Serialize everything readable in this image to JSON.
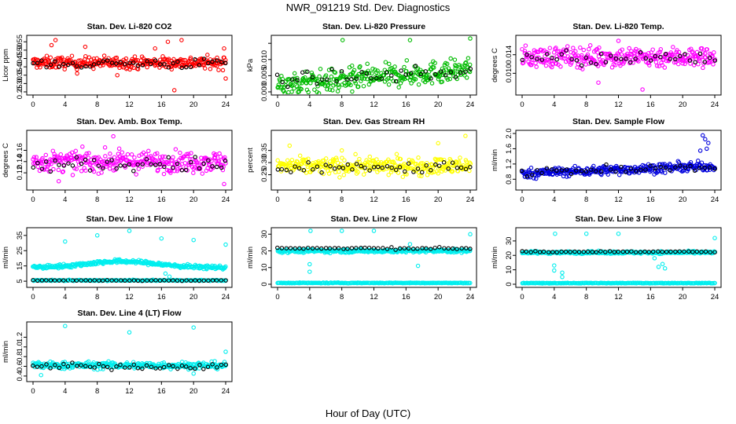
{
  "figure": {
    "title": "NWR_091219  Std. Dev. Diagnostics",
    "xlabel": "Hour of Day (UTC)"
  },
  "chart_data": [
    {
      "type": "scatter",
      "title": "Stan. Dev. Li-820 CO2",
      "ylabel": "Licor ppm",
      "xlim": [
        0,
        24
      ],
      "xticks": [
        0,
        4,
        8,
        12,
        16,
        20,
        24
      ],
      "ylim": [
        0.25,
        0.57
      ],
      "yticks": [
        0.25,
        0.3,
        0.35,
        0.4,
        0.45,
        0.5,
        0.55
      ],
      "ytick_labels": [
        "0.25",
        "0.30",
        "0.35",
        "0.40",
        "0.45",
        "0.50",
        "0.55"
      ],
      "series": [
        {
          "color": "#ff0000",
          "mean": 0.425,
          "spread": 0.035,
          "n": 320
        },
        {
          "color": "#000000",
          "mean": 0.42,
          "spread": 0.03,
          "n": 45
        }
      ],
      "outliers": [
        {
          "x": 2.3,
          "y": 0.53
        },
        {
          "x": 2.8,
          "y": 0.56
        },
        {
          "x": 6.5,
          "y": 0.52
        },
        {
          "x": 15.2,
          "y": 0.51
        },
        {
          "x": 16.8,
          "y": 0.55
        },
        {
          "x": 18.5,
          "y": 0.56
        },
        {
          "x": 10.5,
          "y": 0.35
        },
        {
          "x": 5.5,
          "y": 0.36
        },
        {
          "x": 17.6,
          "y": 0.26
        },
        {
          "x": 23.8,
          "y": 0.51
        },
        {
          "x": 24,
          "y": 0.33
        }
      ]
    },
    {
      "type": "scatter",
      "title": "Stan. Dev. Li-820 Pressure",
      "ylabel": "kPa",
      "xlim": [
        0,
        24
      ],
      "xticks": [
        0,
        4,
        8,
        12,
        16,
        20,
        24
      ],
      "ylim": [
        0,
        0.0165
      ],
      "yticks": [
        0,
        0.005,
        0.01,
        0.015
      ],
      "ytick_labels": [
        "0.000",
        "0.005",
        "0.010",
        ""
      ],
      "series": [
        {
          "color": "#00bb00",
          "mean": 0.0045,
          "spread": 0.0035,
          "n": 320,
          "trend": 0.0002
        },
        {
          "color": "#000000",
          "mean": 0.005,
          "spread": 0.002,
          "n": 40,
          "trend": 0.0001
        }
      ],
      "outliers": [
        {
          "x": 8.1,
          "y": 0.016
        },
        {
          "x": 16.5,
          "y": 0.016
        },
        {
          "x": 24,
          "y": 0.0165
        },
        {
          "x": 7.5,
          "y": 0.0002
        },
        {
          "x": 9.3,
          "y": 0.0001
        }
      ]
    },
    {
      "type": "scatter",
      "title": "Stan. Dev. Li-820 Temp.",
      "ylabel": "degrees C",
      "xlim": [
        0,
        24
      ],
      "xticks": [
        0,
        4,
        8,
        12,
        16,
        20,
        24
      ],
      "ylim": [
        0.006,
        0.0175
      ],
      "yticks": [
        0.01,
        0.014
      ],
      "ytick_labels": [
        "0.010",
        "0.014"
      ],
      "series": [
        {
          "color": "#ff00ff",
          "mean": 0.0135,
          "spread": 0.0022,
          "n": 320
        },
        {
          "color": "#000000",
          "mean": 0.0132,
          "spread": 0.0015,
          "n": 40
        }
      ],
      "outliers": [
        {
          "x": 12,
          "y": 0.017
        },
        {
          "x": 9.5,
          "y": 0.008
        },
        {
          "x": 15,
          "y": 0.0065
        }
      ]
    },
    {
      "type": "scatter",
      "title": "Stan. Dev. Amb. Box Temp.",
      "ylabel": "degrees C",
      "xlim": [
        0,
        24
      ],
      "xticks": [
        0,
        4,
        8,
        12,
        16,
        20,
        24
      ],
      "ylim": [
        0.095,
        0.19
      ],
      "yticks": [
        0.12,
        0.14,
        0.16
      ],
      "ytick_labels": [
        "0.12",
        "0.14",
        "0.16"
      ],
      "series": [
        {
          "color": "#ff00ff",
          "mean": 0.14,
          "spread": 0.018,
          "n": 320
        },
        {
          "color": "#000000",
          "mean": 0.135,
          "spread": 0.013,
          "n": 45
        }
      ],
      "outliers": [
        {
          "x": 10,
          "y": 0.185
        },
        {
          "x": 3.2,
          "y": 0.105
        },
        {
          "x": 23.8,
          "y": 0.1
        }
      ]
    },
    {
      "type": "scatter",
      "title": "Stan. Dev. Gas Stream RH",
      "ylabel": "percent",
      "xlim": [
        0,
        24
      ],
      "xticks": [
        0,
        4,
        8,
        12,
        16,
        20,
        24
      ],
      "ylim": [
        0.2,
        0.42
      ],
      "yticks": [
        0.25,
        0.3,
        0.35
      ],
      "ytick_labels": [
        "0.25",
        "0.30",
        "0.35"
      ],
      "series": [
        {
          "color": "#ffff00",
          "mean": 0.285,
          "spread": 0.035,
          "n": 320
        },
        {
          "color": "#000000",
          "mean": 0.28,
          "spread": 0.025,
          "n": 45
        }
      ],
      "outliers": [
        {
          "x": 1.5,
          "y": 0.37
        },
        {
          "x": 23.4,
          "y": 0.41
        },
        {
          "x": 20,
          "y": 0.38
        },
        {
          "x": 8,
          "y": 0.35
        }
      ]
    },
    {
      "type": "scatter",
      "title": "Stan. Dev. Sample Flow",
      "ylabel": "ml/min",
      "xlim": [
        0,
        24
      ],
      "xticks": [
        0,
        4,
        8,
        12,
        16,
        20,
        24
      ],
      "ylim": [
        0.6,
        2.0
      ],
      "yticks": [
        0.8,
        1.2,
        1.6,
        2.0
      ],
      "ytick_labels": [
        "0.8",
        "1.2",
        "1.6",
        "2.0"
      ],
      "series": [
        {
          "color": "#0000dd",
          "mean": 1.05,
          "spread": 0.12,
          "n": 320,
          "trend": 0.008
        },
        {
          "color": "#000000",
          "mean": 1.05,
          "spread": 0.1,
          "n": 40,
          "trend": 0.006
        }
      ],
      "outliers": [
        {
          "x": 22.5,
          "y": 1.95
        },
        {
          "x": 22.8,
          "y": 1.85
        },
        {
          "x": 23.2,
          "y": 1.75
        },
        {
          "x": 23,
          "y": 1.6
        },
        {
          "x": 22.2,
          "y": 1.55
        }
      ]
    },
    {
      "type": "scatter",
      "title": "Stan. Dev. Line 1 Flow",
      "ylabel": "ml/min",
      "xlim": [
        0,
        24
      ],
      "xticks": [
        0,
        4,
        8,
        12,
        16,
        20,
        24
      ],
      "ylim": [
        3,
        38
      ],
      "yticks": [
        5,
        15,
        25,
        35
      ],
      "ytick_labels": [
        "5",
        "15",
        "25",
        "35"
      ],
      "series": [
        {
          "color": "#00eeee",
          "mean": 14,
          "spread": 1.2,
          "n": 320,
          "bump": 4
        },
        {
          "color": "#00eeee",
          "mean": 5.5,
          "spread": 0.3,
          "n": 200
        },
        {
          "color": "#000000",
          "mean": 5.5,
          "spread": 0.2,
          "n": 45
        }
      ],
      "outliers": [
        {
          "x": 4,
          "y": 31
        },
        {
          "x": 8,
          "y": 35
        },
        {
          "x": 12,
          "y": 38
        },
        {
          "x": 16,
          "y": 33
        },
        {
          "x": 20,
          "y": 32
        },
        {
          "x": 24,
          "y": 29
        },
        {
          "x": 4.5,
          "y": 6
        },
        {
          "x": 16.5,
          "y": 10
        },
        {
          "x": 17,
          "y": 8
        }
      ]
    },
    {
      "type": "scatter",
      "title": "Stan. Dev. Line 2 Flow",
      "ylabel": "ml/min",
      "xlim": [
        0,
        24
      ],
      "xticks": [
        0,
        4,
        8,
        12,
        16,
        20,
        24
      ],
      "ylim": [
        0,
        32
      ],
      "yticks": [
        0,
        10,
        20,
        30
      ],
      "ytick_labels": [
        "0",
        "10",
        "20",
        "30"
      ],
      "series": [
        {
          "color": "#00eeee",
          "mean": 20,
          "spread": 1.0,
          "n": 320
        },
        {
          "color": "#00eeee",
          "mean": 0.8,
          "spread": 0.2,
          "n": 200
        },
        {
          "color": "#000000",
          "mean": 21.5,
          "spread": 0.6,
          "n": 45
        }
      ],
      "outliers": [
        {
          "x": 4,
          "y": 12
        },
        {
          "x": 4,
          "y": 7.5
        },
        {
          "x": 4.1,
          "y": 32
        },
        {
          "x": 8,
          "y": 32
        },
        {
          "x": 12,
          "y": 32
        },
        {
          "x": 16.5,
          "y": 24
        },
        {
          "x": 17.5,
          "y": 11
        },
        {
          "x": 24,
          "y": 30
        }
      ]
    },
    {
      "type": "scatter",
      "title": "Stan. Dev. Line 3 Flow",
      "ylabel": "ml/min",
      "xlim": [
        0,
        24
      ],
      "xticks": [
        0,
        4,
        8,
        12,
        16,
        20,
        24
      ],
      "ylim": [
        0,
        37
      ],
      "yticks": [
        0,
        10,
        20,
        30
      ],
      "ytick_labels": [
        "0",
        "10",
        "20",
        "30"
      ],
      "series": [
        {
          "color": "#00eeee",
          "mean": 22,
          "spread": 0.8,
          "n": 320
        },
        {
          "color": "#00eeee",
          "mean": 0.8,
          "spread": 0.2,
          "n": 200
        },
        {
          "color": "#000000",
          "mean": 22.5,
          "spread": 0.5,
          "n": 45
        }
      ],
      "outliers": [
        {
          "x": 4,
          "y": 13
        },
        {
          "x": 4,
          "y": 9.5
        },
        {
          "x": 4.1,
          "y": 35
        },
        {
          "x": 5,
          "y": 5
        },
        {
          "x": 5,
          "y": 8
        },
        {
          "x": 8,
          "y": 35
        },
        {
          "x": 12,
          "y": 35
        },
        {
          "x": 16.5,
          "y": 18
        },
        {
          "x": 17,
          "y": 12
        },
        {
          "x": 17.5,
          "y": 14
        },
        {
          "x": 17.8,
          "y": 11
        },
        {
          "x": 24,
          "y": 32
        }
      ]
    },
    {
      "type": "scatter",
      "title": "Stan. Dev. Line 4 (LT) Flow",
      "ylabel": "ml/min",
      "xlim": [
        0,
        24
      ],
      "xticks": [
        0,
        4,
        8,
        12,
        16,
        20,
        24
      ],
      "ylim": [
        0.35,
        1.45
      ],
      "yticks": [
        0.4,
        0.6,
        0.8,
        1.0,
        1.2
      ],
      "ytick_labels": [
        "0.4",
        "0.6",
        "0.8",
        "1.0",
        "1.2"
      ],
      "series": [
        {
          "color": "#00eeee",
          "mean": 0.62,
          "spread": 0.07,
          "n": 320
        },
        {
          "color": "#000000",
          "mean": 0.6,
          "spread": 0.06,
          "n": 45
        }
      ],
      "outliers": [
        {
          "x": 4,
          "y": 1.43
        },
        {
          "x": 12,
          "y": 1.3
        },
        {
          "x": 20,
          "y": 1.4
        },
        {
          "x": 24,
          "y": 0.9
        },
        {
          "x": 1,
          "y": 0.42
        },
        {
          "x": 20,
          "y": 0.45
        }
      ]
    }
  ]
}
